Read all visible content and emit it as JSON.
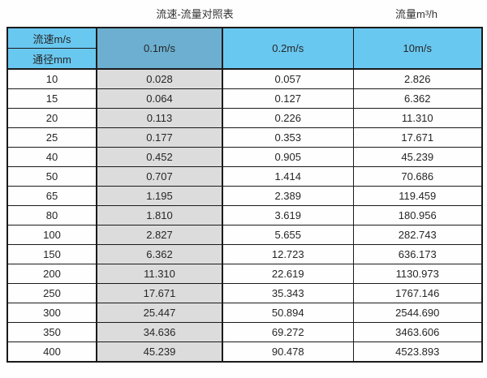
{
  "page": {
    "title_center": "流速-流量对照表",
    "title_right": "流量m³/h"
  },
  "table": {
    "header": {
      "corner_top": "流速m/s",
      "corner_bottom": "通径mm",
      "velocity_columns": [
        "0.1m/s",
        "0.2m/s",
        "10m/s"
      ]
    },
    "rows": [
      [
        "10",
        "0.028",
        "0.057",
        "2.826"
      ],
      [
        "15",
        "0.064",
        "0.127",
        "6.362"
      ],
      [
        "20",
        "0.113",
        "0.226",
        "11.310"
      ],
      [
        "25",
        "0.177",
        "0.353",
        "17.671"
      ],
      [
        "40",
        "0.452",
        "0.905",
        "45.239"
      ],
      [
        "50",
        "0.707",
        "1.414",
        "70.686"
      ],
      [
        "65",
        "1.195",
        "2.389",
        "119.459"
      ],
      [
        "80",
        "1.810",
        "3.619",
        "180.956"
      ],
      [
        "100",
        "2.827",
        "5.655",
        "282.743"
      ],
      [
        "150",
        "6.362",
        "12.723",
        "636.173"
      ],
      [
        "200",
        "11.310",
        "22.619",
        "1130.973"
      ],
      [
        "250",
        "17.671",
        "35.343",
        "1767.146"
      ],
      [
        "300",
        "25.447",
        "50.894",
        "2544.690"
      ],
      [
        "350",
        "34.636",
        "69.272",
        "3463.606"
      ],
      [
        "400",
        "45.239",
        "90.478",
        "4523.893"
      ]
    ]
  },
  "colors": {
    "header_light_blue": "#69C8F0",
    "header_dark_blue": "#6CAFD0",
    "highlight_gray": "#DCDCDC",
    "border": "#1A1A1A",
    "text": "#262626"
  },
  "chart_data": {
    "type": "table",
    "title": "流速-流量对照表",
    "unit_label": "流量m³/h",
    "columns": [
      "通径mm",
      "0.1m/s",
      "0.2m/s",
      "10m/s"
    ],
    "rows": [
      [
        10,
        0.028,
        0.057,
        2.826
      ],
      [
        15,
        0.064,
        0.127,
        6.362
      ],
      [
        20,
        0.113,
        0.226,
        11.31
      ],
      [
        25,
        0.177,
        0.353,
        17.671
      ],
      [
        40,
        0.452,
        0.905,
        45.239
      ],
      [
        50,
        0.707,
        1.414,
        70.686
      ],
      [
        65,
        1.195,
        2.389,
        119.459
      ],
      [
        80,
        1.81,
        3.619,
        180.956
      ],
      [
        100,
        2.827,
        5.655,
        282.743
      ],
      [
        150,
        6.362,
        12.723,
        636.173
      ],
      [
        200,
        11.31,
        22.619,
        1130.973
      ],
      [
        250,
        17.671,
        35.343,
        1767.146
      ],
      [
        300,
        25.447,
        50.894,
        2544.69
      ],
      [
        350,
        34.636,
        69.272,
        3463.606
      ],
      [
        400,
        45.239,
        90.478,
        4523.893
      ]
    ]
  }
}
